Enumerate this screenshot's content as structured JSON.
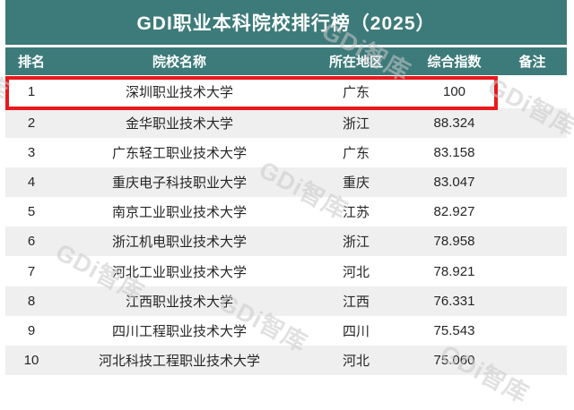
{
  "title": "GDI职业本科院校排行榜（2025）",
  "watermark_text": "GDi智库",
  "theme": {
    "header_bg": "#3d7b7a",
    "header_text": "#ffffff",
    "row_bg": "#ffffff",
    "stripe_bg": "#efefef",
    "body_text": "#262626",
    "highlight_border": "#e8191c",
    "watermark_color": "#c9c9c9"
  },
  "highlight": {
    "row_rank": "1"
  },
  "chart_data": {
    "type": "table",
    "title": "GDI职业本科院校排行榜（2025）",
    "columns": [
      "排名",
      "院校名称",
      "所在地区",
      "综合指数",
      "备注"
    ],
    "rows": [
      [
        "1",
        "深圳职业技术大学",
        "广东",
        "100",
        ""
      ],
      [
        "2",
        "金华职业技术大学",
        "浙江",
        "88.324",
        ""
      ],
      [
        "3",
        "广东轻工职业技术大学",
        "广东",
        "83.158",
        ""
      ],
      [
        "4",
        "重庆电子科技职业大学",
        "重庆",
        "83.047",
        ""
      ],
      [
        "5",
        "南京工业职业技术大学",
        "江苏",
        "82.927",
        ""
      ],
      [
        "6",
        "浙江机电职业技术大学",
        "浙江",
        "78.958",
        ""
      ],
      [
        "7",
        "河北工业职业技术大学",
        "河北",
        "78.921",
        ""
      ],
      [
        "8",
        "江西职业技术大学",
        "江西",
        "76.331",
        ""
      ],
      [
        "9",
        "四川工程职业技术大学",
        "四川",
        "75.543",
        ""
      ],
      [
        "10",
        "河北科技工程职业技术大学",
        "河北",
        "75.060",
        ""
      ]
    ]
  }
}
